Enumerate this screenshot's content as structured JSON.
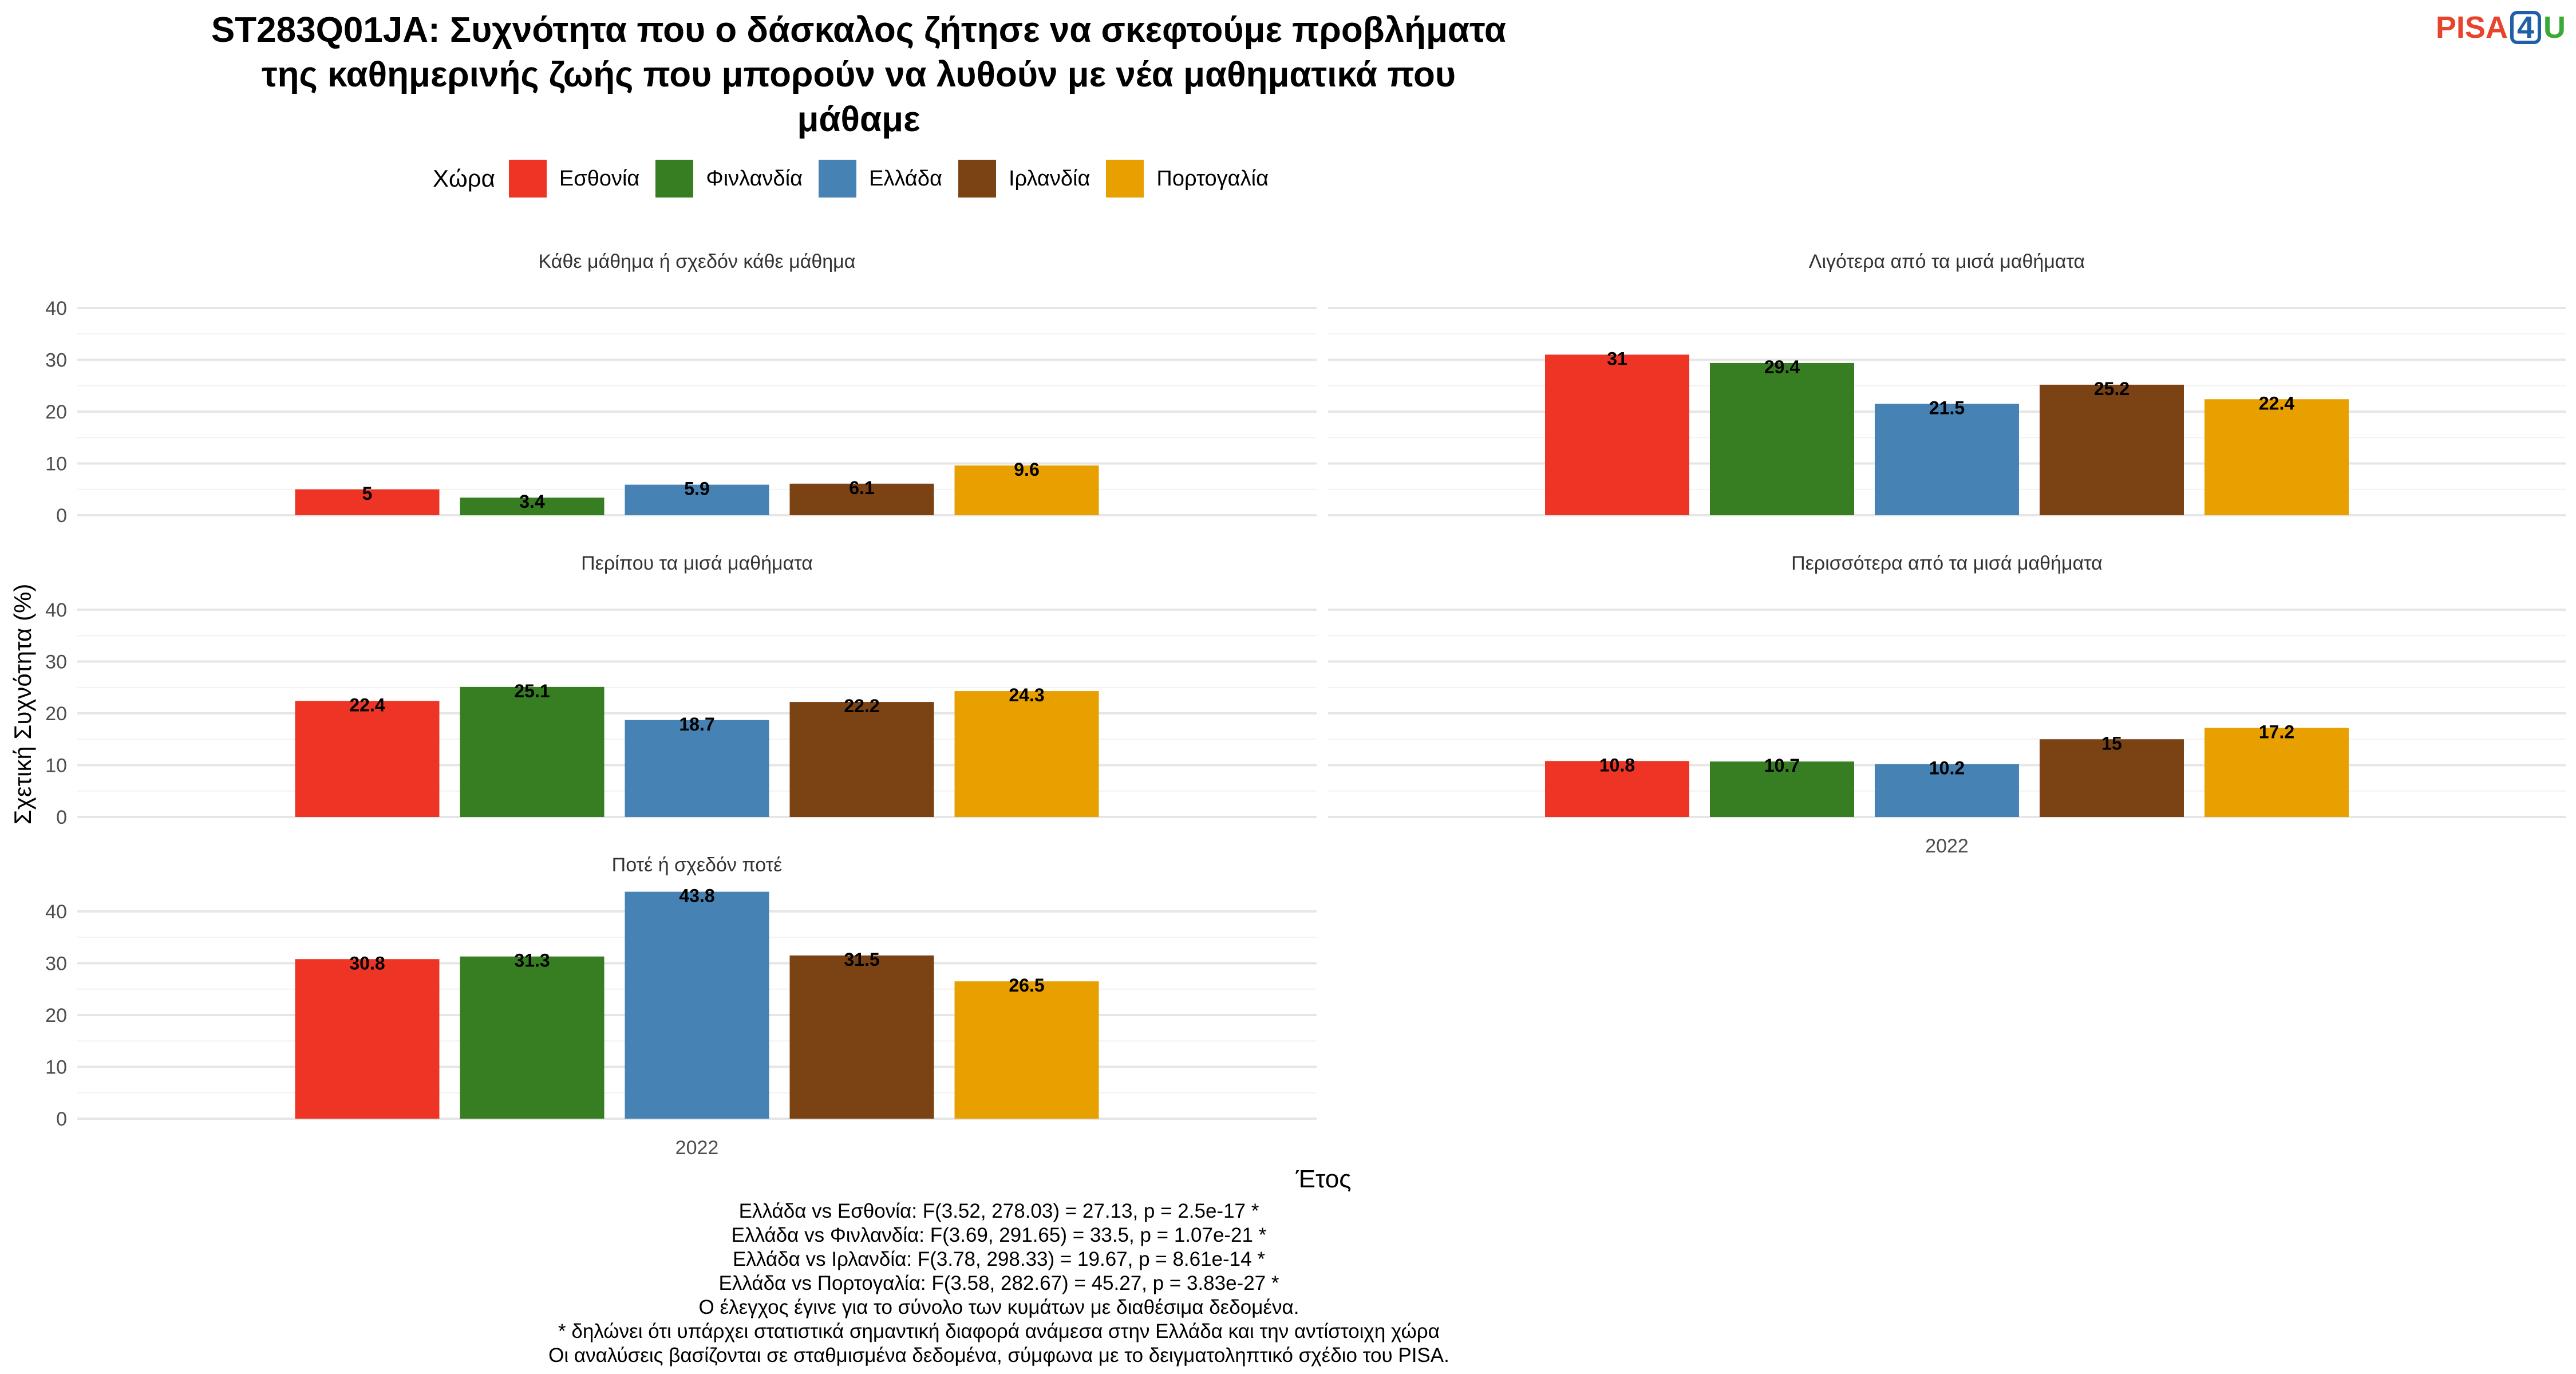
{
  "title_lines": [
    "ST283Q01JA: Συχνότητα που ο δάσκαλος ζήτησε να σκεφτούμε προβλήματα",
    "της καθημερινής ζωής που μπορούν να λυθούν με νέα μαθηματικά που",
    "μάθαμε"
  ],
  "logo": {
    "part1": "PISA",
    "part2": "4",
    "part3": "U"
  },
  "legend": {
    "title": "Χώρα"
  },
  "colors": {
    "Εσθονία": "#ee3424",
    "Φινλανδία": "#377e22",
    "Ελλάδα": "#4682b4",
    "Ιρλανδία": "#7b4214",
    "Πορτογαλία": "#e8a000"
  },
  "chart_data": {
    "type": "bar",
    "xlabel": "Έτος",
    "ylabel": "Σχετική Συχνότητα (%)",
    "ylim": [
      0,
      40
    ],
    "yticks": [
      0,
      10,
      20,
      30,
      40
    ],
    "categories": [
      "2022"
    ],
    "series_names": [
      "Εσθονία",
      "Φινλανδία",
      "Ελλάδα",
      "Ιρλανδία",
      "Πορτογαλία"
    ],
    "legend_position": "top",
    "grid": true,
    "facets": [
      {
        "title": "Κάθε μάθημα ή σχεδόν κάθε μάθημα",
        "values": [
          5,
          3.4,
          5.9,
          6.1,
          9.6
        ],
        "labels": [
          "5",
          "3.4",
          "5.9",
          "6.1",
          "9.6"
        ]
      },
      {
        "title": "Λιγότερα από τα μισά μαθήματα",
        "values": [
          31,
          29.4,
          21.5,
          25.2,
          22.4
        ],
        "labels": [
          "31",
          "29.4",
          "21.5",
          "25.2",
          "22.4"
        ]
      },
      {
        "title": "Περίπου τα μισά μαθήματα",
        "values": [
          22.4,
          25.1,
          18.7,
          22.2,
          24.3
        ],
        "labels": [
          "22.4",
          "25.1",
          "18.7",
          "22.2",
          "24.3"
        ]
      },
      {
        "title": "Περισσότερα από τα μισά μαθήματα",
        "values": [
          10.8,
          10.7,
          10.2,
          15,
          17.2
        ],
        "labels": [
          "10.8",
          "10.7",
          "10.2",
          "15",
          "17.2"
        ]
      },
      {
        "title": "Ποτέ ή σχεδόν ποτέ",
        "values": [
          30.8,
          31.3,
          43.8,
          31.5,
          26.5
        ],
        "labels": [
          "30.8",
          "31.3",
          "43.8",
          "31.5",
          "26.5"
        ]
      }
    ]
  },
  "caption_lines": [
    "Ελλάδα vs Εσθονία: F(3.52, 278.03) = 27.13, p = 2.5e-17 *",
    "Ελλάδα vs Φινλανδία: F(3.69, 291.65) = 33.5, p = 1.07e-21 *",
    "Ελλάδα vs Ιρλανδία: F(3.78, 298.33) = 19.67, p = 8.61e-14 *",
    "Ελλάδα vs Πορτογαλία: F(3.58, 282.67) = 45.27, p = 3.83e-27 *",
    "Ο έλεγχος έγινε για το σύνολο των κυμάτων με διαθέσιμα δεδομένα.",
    "* δηλώνει ότι υπάρχει στατιστικά σημαντική διαφορά ανάμεσα στην Ελλάδα και την αντίστοιχη χώρα",
    "Οι αναλύσεις βασίζονται σε σταθμισμένα δεδομένα, σύμφωνα με το δειγματοληπτικό σχέδιο του PISA."
  ]
}
